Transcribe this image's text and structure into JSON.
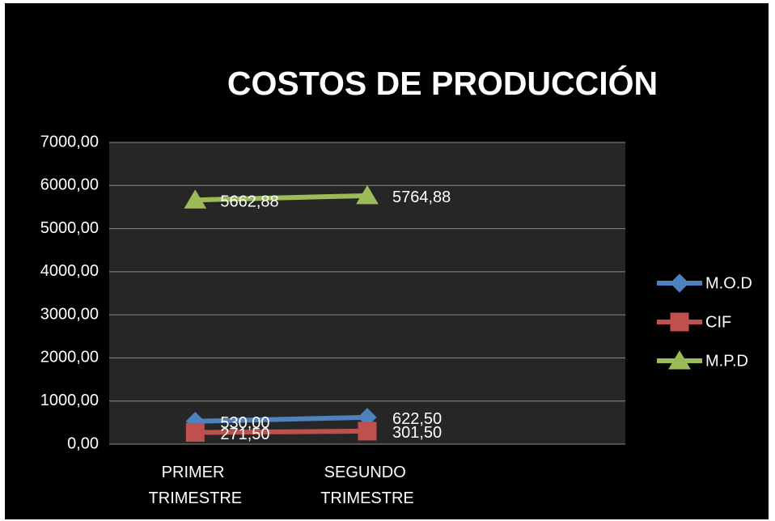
{
  "chart_data": {
    "type": "line",
    "title": "COSTOS DE PRODUCCIÓN",
    "categories": [
      "PRIMER TRIMESTRE",
      "SEGUNDO TRIMESTRE",
      null
    ],
    "series": [
      {
        "name": "M.O.D",
        "color": "#4f81bd",
        "marker": "diamond",
        "values": [
          530,
          622.5,
          null
        ],
        "value_labels": [
          "530,00",
          "622,50",
          null
        ]
      },
      {
        "name": "CIF",
        "color": "#c0504d",
        "marker": "square",
        "values": [
          271.5,
          301.5,
          null
        ],
        "value_labels": [
          "271,50",
          "301,50",
          null
        ]
      },
      {
        "name": "M.P.D",
        "color": "#9bbb59",
        "marker": "triangle",
        "values": [
          5662.88,
          5764.88,
          null
        ],
        "value_labels": [
          "5662,88",
          "5764,88",
          null
        ]
      }
    ],
    "ylim": [
      0,
      7000
    ],
    "yticks": [
      {
        "value": 0,
        "label": "0,00"
      },
      {
        "value": 1000,
        "label": "1000,00"
      },
      {
        "value": 2000,
        "label": "2000,00"
      },
      {
        "value": 3000,
        "label": "3000,00"
      },
      {
        "value": 4000,
        "label": "4000,00"
      },
      {
        "value": 5000,
        "label": "5000,00"
      },
      {
        "value": 6000,
        "label": "6000,00"
      },
      {
        "value": 7000,
        "label": "7000,00"
      }
    ],
    "grid": true,
    "legend": "right",
    "background": "#000000",
    "plot_background": "#262626"
  }
}
